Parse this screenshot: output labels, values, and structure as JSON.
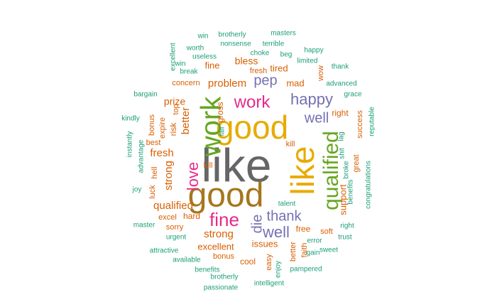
{
  "palette": {
    "teal": "#1b9e77",
    "orange": "#d95f02",
    "purple": "#7570b3",
    "magenta": "#e7298a",
    "green": "#66a61e",
    "gold": "#e6ab02",
    "brown": "#a6761d",
    "gray": "#666666"
  },
  "words": [
    {
      "text": "like",
      "color": "gray"
    },
    {
      "text": "good",
      "color": "gold"
    },
    {
      "text": "good",
      "color": "brown"
    },
    {
      "text": "like",
      "color": "gold"
    },
    {
      "text": "work",
      "color": "green"
    },
    {
      "text": "qualified",
      "color": "green"
    },
    {
      "text": "fine",
      "color": "magenta"
    },
    {
      "text": "work",
      "color": "magenta"
    },
    {
      "text": "happy",
      "color": "purple"
    },
    {
      "text": "love",
      "color": "magenta"
    },
    {
      "text": "well",
      "color": "purple"
    },
    {
      "text": "die",
      "color": "purple"
    },
    {
      "text": "thank",
      "color": "purple"
    },
    {
      "text": "pep",
      "color": "purple"
    },
    {
      "text": "well",
      "color": "purple"
    },
    {
      "text": "fresh",
      "color": "orange"
    },
    {
      "text": "strong",
      "color": "orange"
    },
    {
      "text": "qualified",
      "color": "orange"
    },
    {
      "text": "strong",
      "color": "orange"
    },
    {
      "text": "problem",
      "color": "orange"
    },
    {
      "text": "prize",
      "color": "orange"
    },
    {
      "text": "better",
      "color": "orange"
    },
    {
      "text": "bless",
      "color": "orange"
    },
    {
      "text": "support",
      "color": "orange"
    },
    {
      "text": "excellent",
      "color": "orange"
    },
    {
      "text": "issues",
      "color": "orange"
    },
    {
      "text": "tired",
      "color": "orange"
    },
    {
      "text": "mad",
      "color": "orange"
    },
    {
      "text": "fine",
      "color": "orange"
    },
    {
      "text": "hard",
      "color": "orange"
    },
    {
      "text": "gross",
      "color": "orange"
    },
    {
      "text": "free",
      "color": "orange"
    },
    {
      "text": "right",
      "color": "orange"
    },
    {
      "text": "risk",
      "color": "orange"
    },
    {
      "text": "bonus",
      "color": "orange"
    },
    {
      "text": "cool",
      "color": "orange"
    },
    {
      "text": "soft",
      "color": "orange"
    },
    {
      "text": "concern",
      "color": "orange"
    },
    {
      "text": "fresh",
      "color": "orange"
    },
    {
      "text": "great",
      "color": "orange"
    },
    {
      "text": "success",
      "color": "orange"
    },
    {
      "text": "kill",
      "color": "orange"
    },
    {
      "text": "kill",
      "color": "orange"
    },
    {
      "text": "easy",
      "color": "orange"
    },
    {
      "text": "better",
      "color": "orange"
    },
    {
      "text": "faith",
      "color": "orange"
    },
    {
      "text": "wow",
      "color": "orange"
    },
    {
      "text": "top",
      "color": "orange"
    },
    {
      "text": "best",
      "color": "orange"
    },
    {
      "text": "expire",
      "color": "orange"
    },
    {
      "text": "bonus",
      "color": "orange"
    },
    {
      "text": "hell",
      "color": "orange"
    },
    {
      "text": "luck",
      "color": "orange"
    },
    {
      "text": "excel",
      "color": "orange"
    },
    {
      "text": "sorry",
      "color": "orange"
    },
    {
      "text": "fall",
      "color": "teal"
    },
    {
      "text": "talent",
      "color": "teal"
    },
    {
      "text": "broke",
      "color": "teal"
    },
    {
      "text": "lag",
      "color": "teal"
    },
    {
      "text": "shit",
      "color": "teal"
    },
    {
      "text": "win",
      "color": "teal"
    },
    {
      "text": "brotherly",
      "color": "teal"
    },
    {
      "text": "masters",
      "color": "teal"
    },
    {
      "text": "terrible",
      "color": "teal"
    },
    {
      "text": "worth",
      "color": "teal"
    },
    {
      "text": "nonsense",
      "color": "teal"
    },
    {
      "text": "happy",
      "color": "teal"
    },
    {
      "text": "excellent",
      "color": "teal"
    },
    {
      "text": "useless",
      "color": "teal"
    },
    {
      "text": "choke",
      "color": "teal"
    },
    {
      "text": "beg",
      "color": "teal"
    },
    {
      "text": "win",
      "color": "teal"
    },
    {
      "text": "limited",
      "color": "teal"
    },
    {
      "text": "break",
      "color": "teal"
    },
    {
      "text": "thank",
      "color": "teal"
    },
    {
      "text": "advanced",
      "color": "teal"
    },
    {
      "text": "grace",
      "color": "teal"
    },
    {
      "text": "bargain",
      "color": "teal"
    },
    {
      "text": "kindly",
      "color": "teal"
    },
    {
      "text": "instantly",
      "color": "teal"
    },
    {
      "text": "advantage",
      "color": "teal"
    },
    {
      "text": "joy",
      "color": "teal"
    },
    {
      "text": "reputable",
      "color": "teal"
    },
    {
      "text": "congratulations",
      "color": "teal"
    },
    {
      "text": "benefits",
      "color": "teal"
    },
    {
      "text": "right",
      "color": "teal"
    },
    {
      "text": "trust",
      "color": "teal"
    },
    {
      "text": "error",
      "color": "teal"
    },
    {
      "text": "sweet",
      "color": "teal"
    },
    {
      "text": "gain",
      "color": "teal"
    },
    {
      "text": "enjoy",
      "color": "teal"
    },
    {
      "text": "pampered",
      "color": "teal"
    },
    {
      "text": "master",
      "color": "teal"
    },
    {
      "text": "urgent",
      "color": "teal"
    },
    {
      "text": "attractive",
      "color": "teal"
    },
    {
      "text": "available",
      "color": "teal"
    },
    {
      "text": "benefits",
      "color": "teal"
    },
    {
      "text": "brotherly",
      "color": "teal"
    },
    {
      "text": "passionate",
      "color": "teal"
    },
    {
      "text": "intelligent",
      "color": "teal"
    }
  ]
}
